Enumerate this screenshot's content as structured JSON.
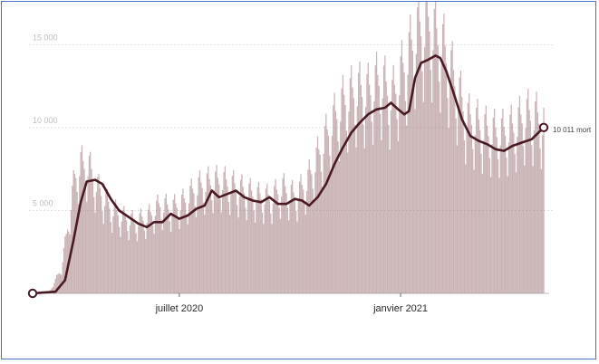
{
  "chart_data": {
    "type": "bar",
    "title": "",
    "xlabel": "",
    "ylabel": "",
    "ylim": [
      0,
      16500
    ],
    "grid": true,
    "y_ticks": [
      {
        "value": 5000,
        "label": "5 000"
      },
      {
        "value": 10000,
        "label": "10 000"
      },
      {
        "value": 15000,
        "label": "15 000"
      }
    ],
    "x_ticks": [
      {
        "value": "2020-07-01",
        "label": "juillet 2020"
      },
      {
        "value": "2021-01-01",
        "label": "janvier 2021"
      }
    ],
    "x_range": [
      "2020-03-01",
      "2021-04-30"
    ],
    "start_marker": {
      "x": "2020-03-01",
      "y": 0
    },
    "end_marker": {
      "x": "2021-04-30",
      "y": 10011,
      "label": "10 011 mort"
    },
    "series": [
      {
        "name": "",
        "kind": "daily_bars",
        "color": "#9c7479",
        "points": [
          [
            "2020-03-01",
            0
          ],
          [
            "2020-03-15",
            100
          ],
          [
            "2020-03-25",
            1500
          ],
          [
            "2020-04-01",
            4800
          ],
          [
            "2020-04-05",
            6800
          ],
          [
            "2020-04-10",
            7600
          ],
          [
            "2020-04-17",
            7400
          ],
          [
            "2020-04-25",
            6100
          ],
          [
            "2020-05-05",
            5000
          ],
          [
            "2020-05-15",
            4500
          ],
          [
            "2020-05-25",
            4200
          ],
          [
            "2020-06-05",
            4500
          ],
          [
            "2020-06-15",
            5200
          ],
          [
            "2020-06-25",
            5000
          ],
          [
            "2020-07-05",
            5400
          ],
          [
            "2020-07-15",
            6200
          ],
          [
            "2020-07-25",
            6500
          ],
          [
            "2020-08-05",
            6600
          ],
          [
            "2020-08-15",
            6300
          ],
          [
            "2020-08-25",
            6000
          ],
          [
            "2020-09-05",
            5700
          ],
          [
            "2020-09-15",
            5600
          ],
          [
            "2020-09-25",
            6200
          ],
          [
            "2020-10-05",
            5700
          ],
          [
            "2020-10-15",
            6500
          ],
          [
            "2020-10-25",
            8200
          ],
          [
            "2020-11-05",
            10000
          ],
          [
            "2020-11-15",
            11300
          ],
          [
            "2020-11-25",
            11900
          ],
          [
            "2020-12-05",
            11800
          ],
          [
            "2020-12-15",
            12600
          ],
          [
            "2020-12-25",
            11500
          ],
          [
            "2021-01-05",
            13500
          ],
          [
            "2021-01-15",
            15400
          ],
          [
            "2021-01-25",
            15800
          ],
          [
            "2021-02-05",
            14500
          ],
          [
            "2021-02-15",
            12500
          ],
          [
            "2021-02-25",
            10300
          ],
          [
            "2021-03-05",
            10000
          ],
          [
            "2021-03-15",
            9500
          ],
          [
            "2021-03-25",
            9400
          ],
          [
            "2021-04-05",
            9700
          ],
          [
            "2021-04-15",
            10500
          ],
          [
            "2021-04-25",
            10300
          ],
          [
            "2021-04-30",
            10000
          ]
        ]
      },
      {
        "name": "",
        "kind": "moving_average",
        "color": "#4a1a22",
        "points": [
          [
            "2020-03-01",
            0
          ],
          [
            "2020-03-10",
            50
          ],
          [
            "2020-03-20",
            100
          ],
          [
            "2020-03-28",
            800
          ],
          [
            "2020-04-04",
            3200
          ],
          [
            "2020-04-10",
            5500
          ],
          [
            "2020-04-15",
            6750
          ],
          [
            "2020-04-22",
            6850
          ],
          [
            "2020-04-28",
            6600
          ],
          [
            "2020-05-05",
            5700
          ],
          [
            "2020-05-12",
            5000
          ],
          [
            "2020-05-20",
            4600
          ],
          [
            "2020-05-28",
            4200
          ],
          [
            "2020-06-04",
            4000
          ],
          [
            "2020-06-10",
            4300
          ],
          [
            "2020-06-17",
            4300
          ],
          [
            "2020-06-24",
            4800
          ],
          [
            "2020-07-01",
            4500
          ],
          [
            "2020-07-08",
            4700
          ],
          [
            "2020-07-15",
            5100
          ],
          [
            "2020-07-22",
            5300
          ],
          [
            "2020-07-28",
            6200
          ],
          [
            "2020-08-03",
            5800
          ],
          [
            "2020-08-10",
            6000
          ],
          [
            "2020-08-17",
            6200
          ],
          [
            "2020-08-24",
            5800
          ],
          [
            "2020-08-31",
            5600
          ],
          [
            "2020-09-07",
            5500
          ],
          [
            "2020-09-14",
            5800
          ],
          [
            "2020-09-21",
            5400
          ],
          [
            "2020-09-28",
            5400
          ],
          [
            "2020-10-05",
            5700
          ],
          [
            "2020-10-11",
            5600
          ],
          [
            "2020-10-17",
            5300
          ],
          [
            "2020-10-24",
            5800
          ],
          [
            "2020-10-31",
            6600
          ],
          [
            "2020-11-07",
            7800
          ],
          [
            "2020-11-14",
            8800
          ],
          [
            "2020-11-21",
            9700
          ],
          [
            "2020-11-28",
            10300
          ],
          [
            "2020-12-05",
            10800
          ],
          [
            "2020-12-12",
            11100
          ],
          [
            "2020-12-19",
            11200
          ],
          [
            "2020-12-24",
            11500
          ],
          [
            "2020-12-30",
            11100
          ],
          [
            "2021-01-04",
            10800
          ],
          [
            "2021-01-08",
            11000
          ],
          [
            "2021-01-13",
            13000
          ],
          [
            "2021-01-18",
            13900
          ],
          [
            "2021-01-24",
            14100
          ],
          [
            "2021-01-30",
            14350
          ],
          [
            "2021-02-03",
            14200
          ],
          [
            "2021-02-08",
            13400
          ],
          [
            "2021-02-14",
            12100
          ],
          [
            "2021-02-21",
            10500
          ],
          [
            "2021-02-28",
            9500
          ],
          [
            "2021-03-07",
            9200
          ],
          [
            "2021-03-14",
            9000
          ],
          [
            "2021-03-21",
            8700
          ],
          [
            "2021-03-28",
            8600
          ],
          [
            "2021-04-04",
            8900
          ],
          [
            "2021-04-12",
            9100
          ],
          [
            "2021-04-20",
            9300
          ],
          [
            "2021-04-30",
            10011
          ]
        ]
      }
    ]
  }
}
